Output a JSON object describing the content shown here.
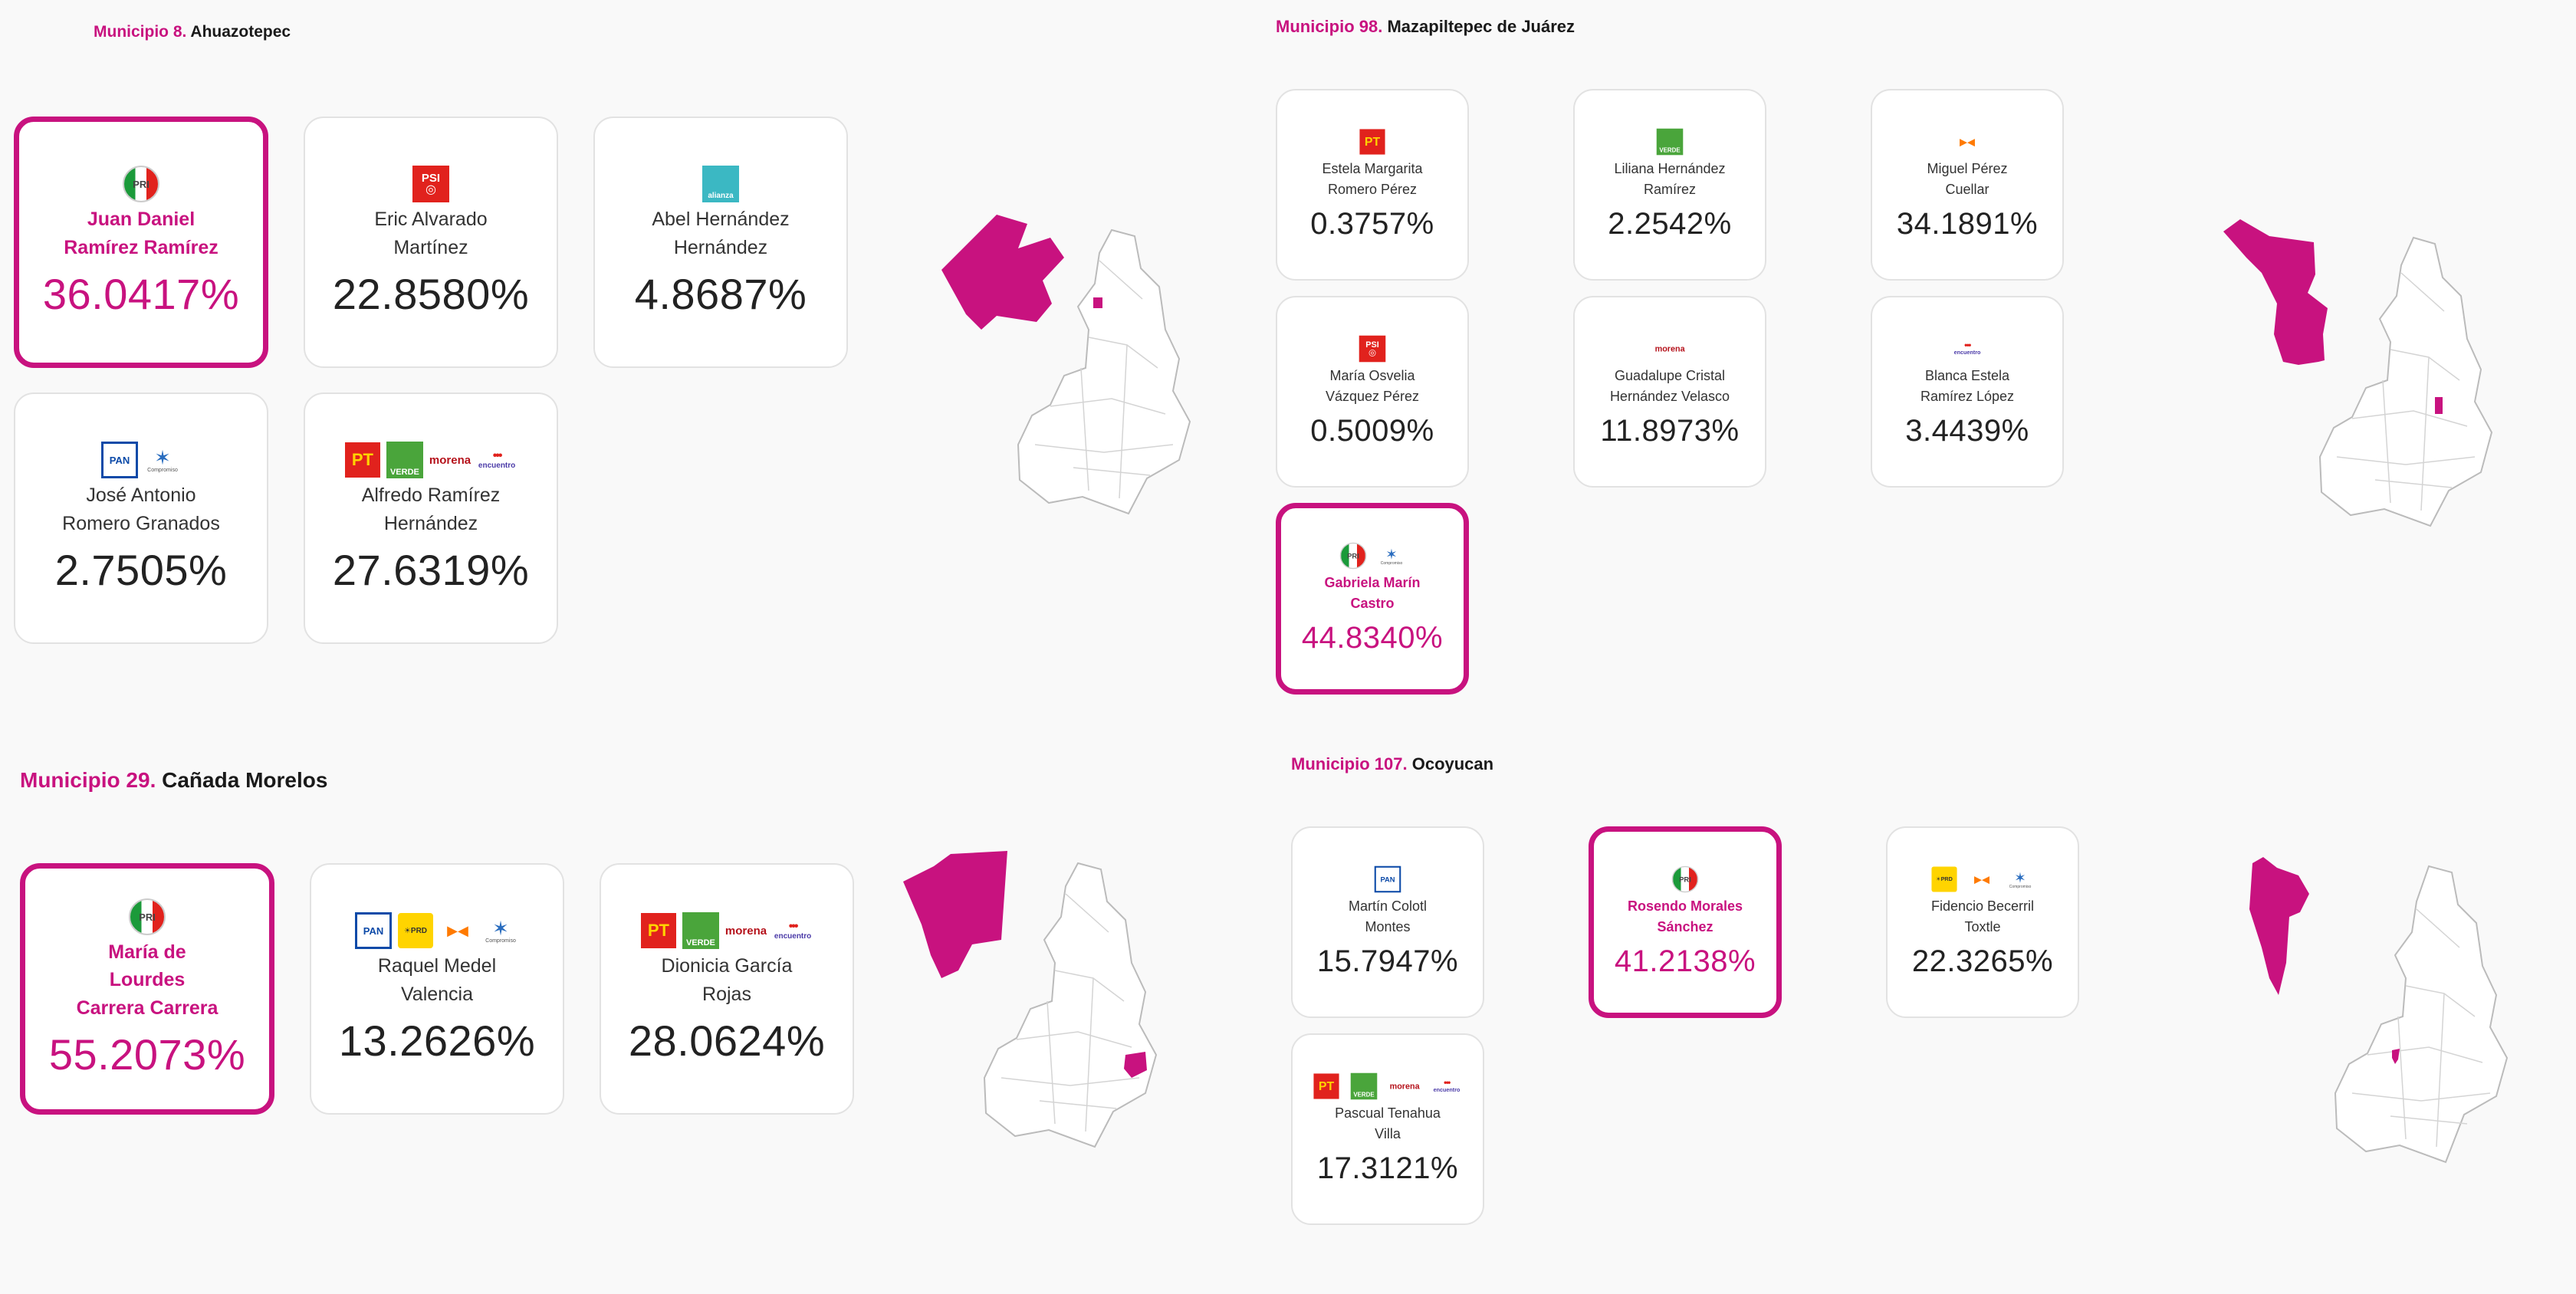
{
  "accent_color": "#c8127f",
  "panels": [
    {
      "municipio_num": "Municipio 8.",
      "municipio_name": "Ahuazotepec",
      "candidates": [
        {
          "name": "Juan Daniel Ramírez Ramírez",
          "pct": "36.0417%",
          "parties": [
            "PRI"
          ],
          "winner": true
        },
        {
          "name": "Eric Alvarado Martínez",
          "pct": "22.8580%",
          "parties": [
            "PSI"
          ]
        },
        {
          "name": "Abel Hernández Hernández",
          "pct": "4.8687%",
          "parties": [
            "alianza"
          ]
        },
        {
          "name": "José Antonio Romero Granados",
          "pct": "2.7505%",
          "parties": [
            "PAN",
            "Compromiso por Puebla"
          ]
        },
        {
          "name": "Alfredo Ramírez Hernández",
          "pct": "27.6319%",
          "parties": [
            "PT",
            "VERDE",
            "morena",
            "encuentro"
          ]
        }
      ]
    },
    {
      "municipio_num": "Municipio 98.",
      "municipio_name": "Mazapiltepec de Juárez",
      "candidates": [
        {
          "name": "Estela Margarita Romero Pérez",
          "pct": "0.3757%",
          "parties": [
            "PT"
          ]
        },
        {
          "name": "Liliana Hernández Ramírez",
          "pct": "2.2542%",
          "parties": [
            "VERDE"
          ]
        },
        {
          "name": "Miguel Pérez Cuellar",
          "pct": "34.1891%",
          "parties": [
            "MC"
          ]
        },
        {
          "name": "María Osvelia Vázquez Pérez",
          "pct": "0.5009%",
          "parties": [
            "PSI"
          ]
        },
        {
          "name": "Guadalupe Cristal Hernández Velasco",
          "pct": "11.8973%",
          "parties": [
            "morena"
          ]
        },
        {
          "name": "Blanca Estela Ramírez López",
          "pct": "3.4439%",
          "parties": [
            "encuentro"
          ]
        },
        {
          "name": "Gabriela Marín Castro",
          "pct": "44.8340%",
          "parties": [
            "PRI",
            "Compromiso por Puebla"
          ],
          "winner": true
        }
      ]
    },
    {
      "municipio_num": "Municipio 29.",
      "municipio_name": "Cañada Morelos",
      "candidates": [
        {
          "name": "María de Lourdes Carrera Carrera",
          "pct": "55.2073%",
          "parties": [
            "PRI"
          ],
          "winner": true
        },
        {
          "name": "Raquel Medel Valencia",
          "pct": "13.2626%",
          "parties": [
            "PAN",
            "PRD",
            "MC",
            "Compromiso por Puebla"
          ]
        },
        {
          "name": "Dionicia García Rojas",
          "pct": "28.0624%",
          "parties": [
            "PT",
            "VERDE",
            "morena",
            "encuentro"
          ]
        }
      ]
    },
    {
      "municipio_num": "Municipio 107.",
      "municipio_name": "Ocoyucan",
      "candidates": [
        {
          "name": "Martín Colotl Montes",
          "pct": "15.7947%",
          "parties": [
            "PAN"
          ]
        },
        {
          "name": "Rosendo Morales Sánchez",
          "pct": "41.2138%",
          "parties": [
            "PRI"
          ],
          "winner": true
        },
        {
          "name": "Fidencio Becerril Toxtle",
          "pct": "22.3265%",
          "parties": [
            "PRD",
            "MC",
            "Compromiso por Puebla"
          ]
        },
        {
          "name": "Pascual Tenahua Villa",
          "pct": "17.3121%",
          "parties": [
            "PT",
            "VERDE",
            "morena",
            "encuentro"
          ]
        }
      ]
    }
  ]
}
